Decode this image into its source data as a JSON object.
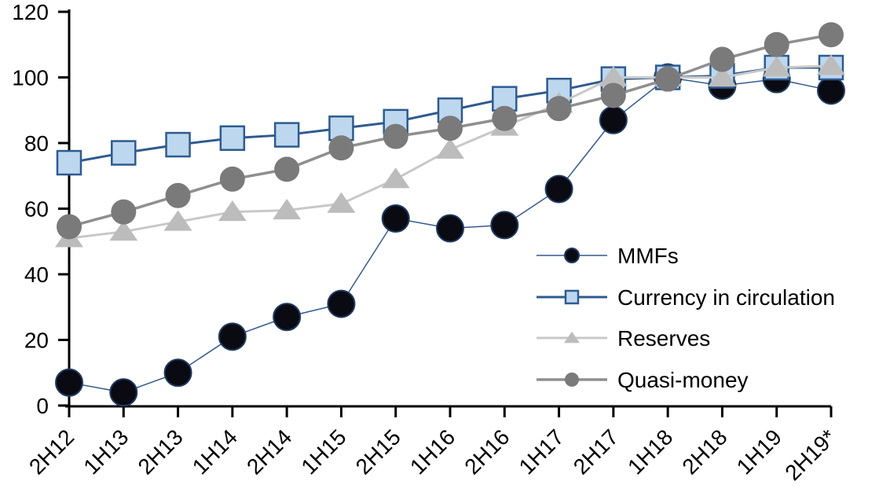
{
  "chart_data": {
    "type": "line",
    "title": "",
    "xlabel": "",
    "ylabel": "",
    "categories": [
      "2H12",
      "1H13",
      "2H13",
      "1H14",
      "2H14",
      "1H15",
      "2H15",
      "1H16",
      "2H16",
      "1H17",
      "2H17",
      "1H18",
      "2H18",
      "1H19",
      "2H19*"
    ],
    "series": [
      {
        "name": "MMFs",
        "marker": "circle",
        "marker_size": 17,
        "marker_fill": "#0a0a12",
        "marker_stroke": "#1f3a5f",
        "line_color": "#35598f",
        "line_width": 1.5,
        "values": [
          7,
          4,
          10,
          21,
          27,
          31,
          57,
          54,
          55,
          66,
          87,
          100,
          97.5,
          99.5,
          96
        ]
      },
      {
        "name": "Currency in circulation",
        "marker": "square",
        "marker_size": 15,
        "marker_fill": "#bdd7ee",
        "marker_stroke": "#2e5b8f",
        "line_color": "#2e5b8f",
        "line_width": 3,
        "values": [
          74,
          77,
          79.5,
          81.5,
          82.5,
          84.5,
          86.5,
          90,
          93.5,
          96,
          99.5,
          100,
          100.5,
          103,
          103
        ]
      },
      {
        "name": "Reserves",
        "marker": "triangle",
        "marker_size": 18,
        "marker_fill": "#bcbcbc",
        "marker_stroke": "none",
        "line_color": "#c8c8c8",
        "line_width": 3,
        "values": [
          51,
          53,
          56,
          59,
          59.5,
          61.5,
          69,
          78,
          85,
          92,
          100,
          100,
          100,
          103,
          103.5
        ]
      },
      {
        "name": "Quasi-money",
        "marker": "circle",
        "marker_size": 16,
        "marker_fill": "#7a7a7a",
        "marker_stroke": "none",
        "line_color": "#8f8f8f",
        "line_width": 3.5,
        "values": [
          54.5,
          59,
          64,
          69,
          72,
          78.5,
          82,
          84.5,
          87.5,
          90.5,
          94.5,
          99.5,
          105.5,
          110,
          113
        ]
      }
    ],
    "ylim": [
      0,
      120
    ],
    "y_ticks": [
      0,
      20,
      40,
      60,
      80,
      100,
      120
    ],
    "grid": false,
    "legend_position": "center-right",
    "axis_color": "#000000",
    "background_color": "#ffffff"
  }
}
